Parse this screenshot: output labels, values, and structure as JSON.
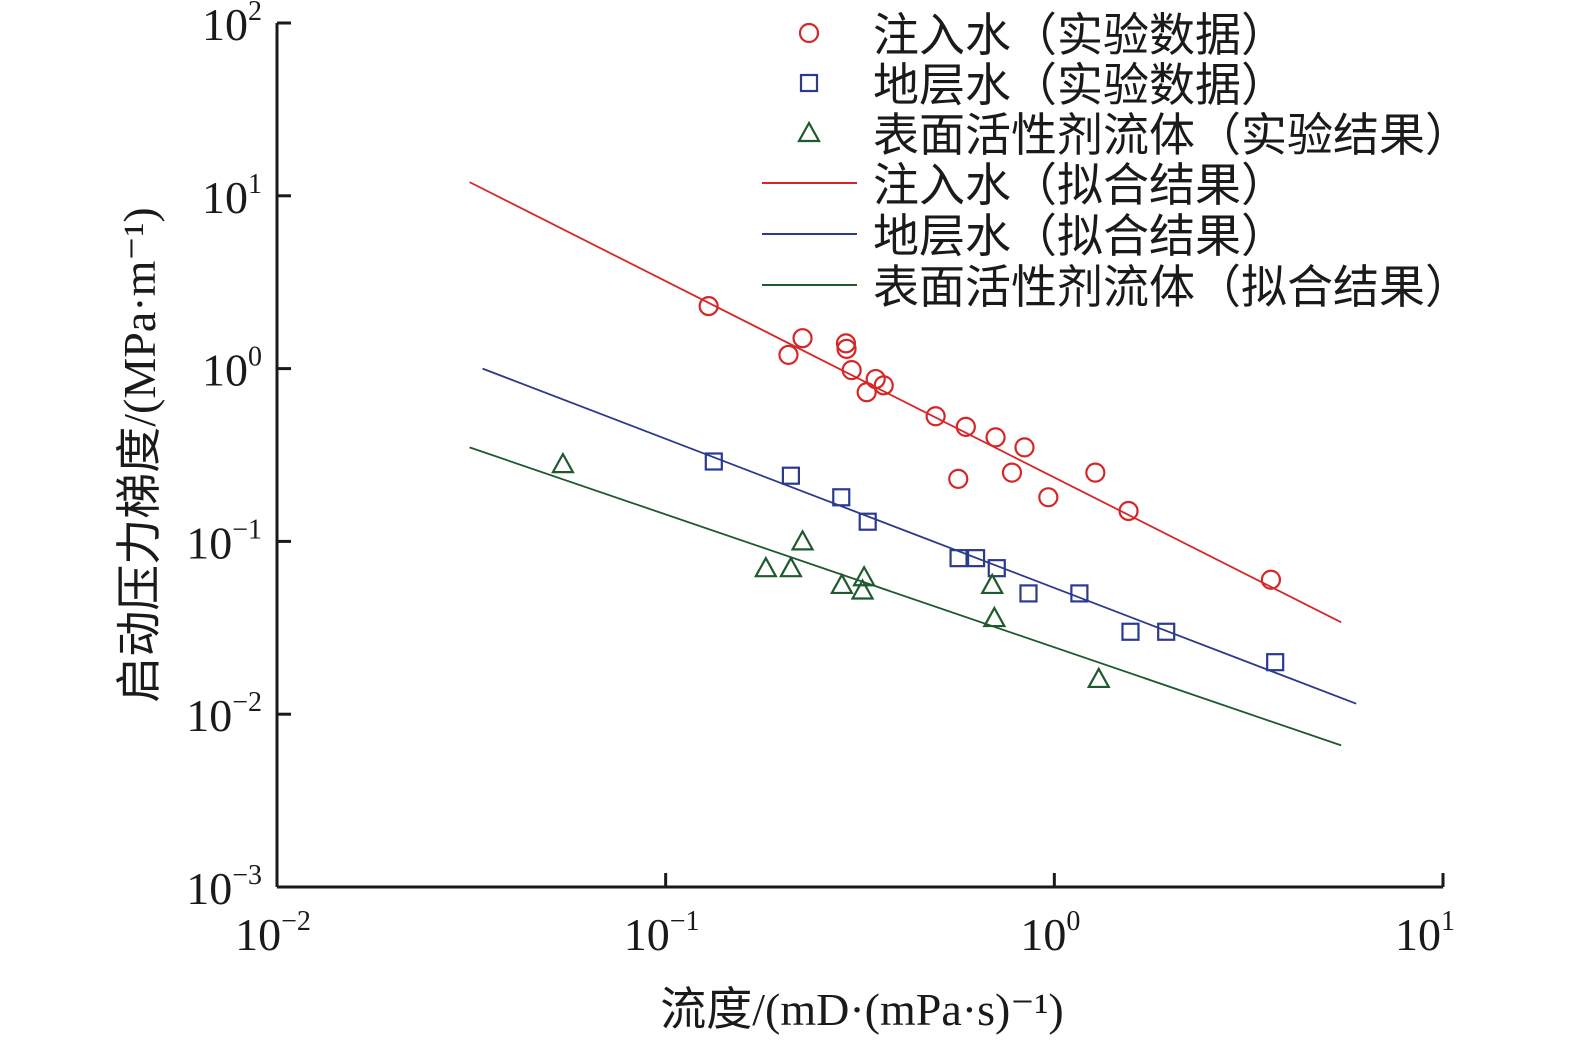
{
  "chart_data": {
    "type": "scatter",
    "x_scale": "log",
    "y_scale": "log",
    "xlim": [
      0.01,
      10
    ],
    "ylim": [
      0.001,
      100
    ],
    "xlabel": "流度/(mD·(mPa·s)⁻¹)",
    "ylabel": "启动压力梯度/(MPa·m⁻¹)",
    "x_ticks": [
      {
        "base": "10",
        "exp": "−2",
        "value": 0.01
      },
      {
        "base": "10",
        "exp": "−1",
        "value": 0.1
      },
      {
        "base": "10",
        "exp": "0",
        "value": 1
      },
      {
        "base": "10",
        "exp": "1",
        "value": 10
      }
    ],
    "y_ticks": [
      {
        "base": "10",
        "exp": "−3",
        "value": 0.001
      },
      {
        "base": "10",
        "exp": "−2",
        "value": 0.01
      },
      {
        "base": "10",
        "exp": "−1",
        "value": 0.1
      },
      {
        "base": "10",
        "exp": "0",
        "value": 1
      },
      {
        "base": "10",
        "exp": "1",
        "value": 10
      },
      {
        "base": "10",
        "exp": "2",
        "value": 100
      }
    ],
    "legend_position": "top-right",
    "series": [
      {
        "name": "注入水（实验数据）",
        "kind": "scatter",
        "marker": "circle",
        "color": "#d62728",
        "points": [
          [
            0.129,
            2.3
          ],
          [
            0.207,
            1.2
          ],
          [
            0.225,
            1.5
          ],
          [
            0.291,
            1.4
          ],
          [
            0.292,
            1.3
          ],
          [
            0.301,
            0.98
          ],
          [
            0.329,
            0.73
          ],
          [
            0.347,
            0.87
          ],
          [
            0.364,
            0.8
          ],
          [
            0.495,
            0.53
          ],
          [
            0.566,
            0.23
          ],
          [
            0.592,
            0.46
          ],
          [
            0.706,
            0.4
          ],
          [
            0.778,
            0.25
          ],
          [
            0.838,
            0.35
          ],
          [
            0.965,
            0.18
          ],
          [
            1.275,
            0.25
          ],
          [
            1.552,
            0.15
          ],
          [
            3.608,
            0.06
          ]
        ]
      },
      {
        "name": "地层水（实验数据）",
        "kind": "scatter",
        "marker": "square",
        "color": "#2b3a8c",
        "points": [
          [
            0.133,
            0.29
          ],
          [
            0.21,
            0.24
          ],
          [
            0.283,
            0.18
          ],
          [
            0.331,
            0.13
          ],
          [
            0.567,
            0.08
          ],
          [
            0.629,
            0.08
          ],
          [
            0.711,
            0.07
          ],
          [
            0.858,
            0.05
          ],
          [
            1.16,
            0.05
          ],
          [
            1.57,
            0.03
          ],
          [
            1.94,
            0.03
          ],
          [
            3.7,
            0.02
          ]
        ]
      },
      {
        "name": "表面活性剂流体（实验结果）",
        "kind": "scatter",
        "marker": "triangle",
        "color": "#1e5a2e",
        "points": [
          [
            0.0544,
            0.28
          ],
          [
            0.181,
            0.07
          ],
          [
            0.21,
            0.07
          ],
          [
            0.225,
            0.1
          ],
          [
            0.284,
            0.056
          ],
          [
            0.321,
            0.052
          ],
          [
            0.324,
            0.062
          ],
          [
            0.692,
            0.056
          ],
          [
            0.701,
            0.036
          ],
          [
            1.301,
            0.016
          ]
        ]
      },
      {
        "name": "注入水（拟合结果）",
        "kind": "line",
        "color": "#d62728",
        "points": [
          [
            0.0313,
            12.0
          ],
          [
            5.47,
            0.034
          ]
        ]
      },
      {
        "name": "地层水（拟合结果）",
        "kind": "line",
        "color": "#2b3a8c",
        "points": [
          [
            0.0338,
            1.0
          ],
          [
            5.98,
            0.0115
          ]
        ]
      },
      {
        "name": "表面活性剂流体（拟合结果）",
        "kind": "line",
        "color": "#1e5a2e",
        "points": [
          [
            0.0313,
            0.35
          ],
          [
            5.47,
            0.0066
          ]
        ]
      }
    ]
  }
}
